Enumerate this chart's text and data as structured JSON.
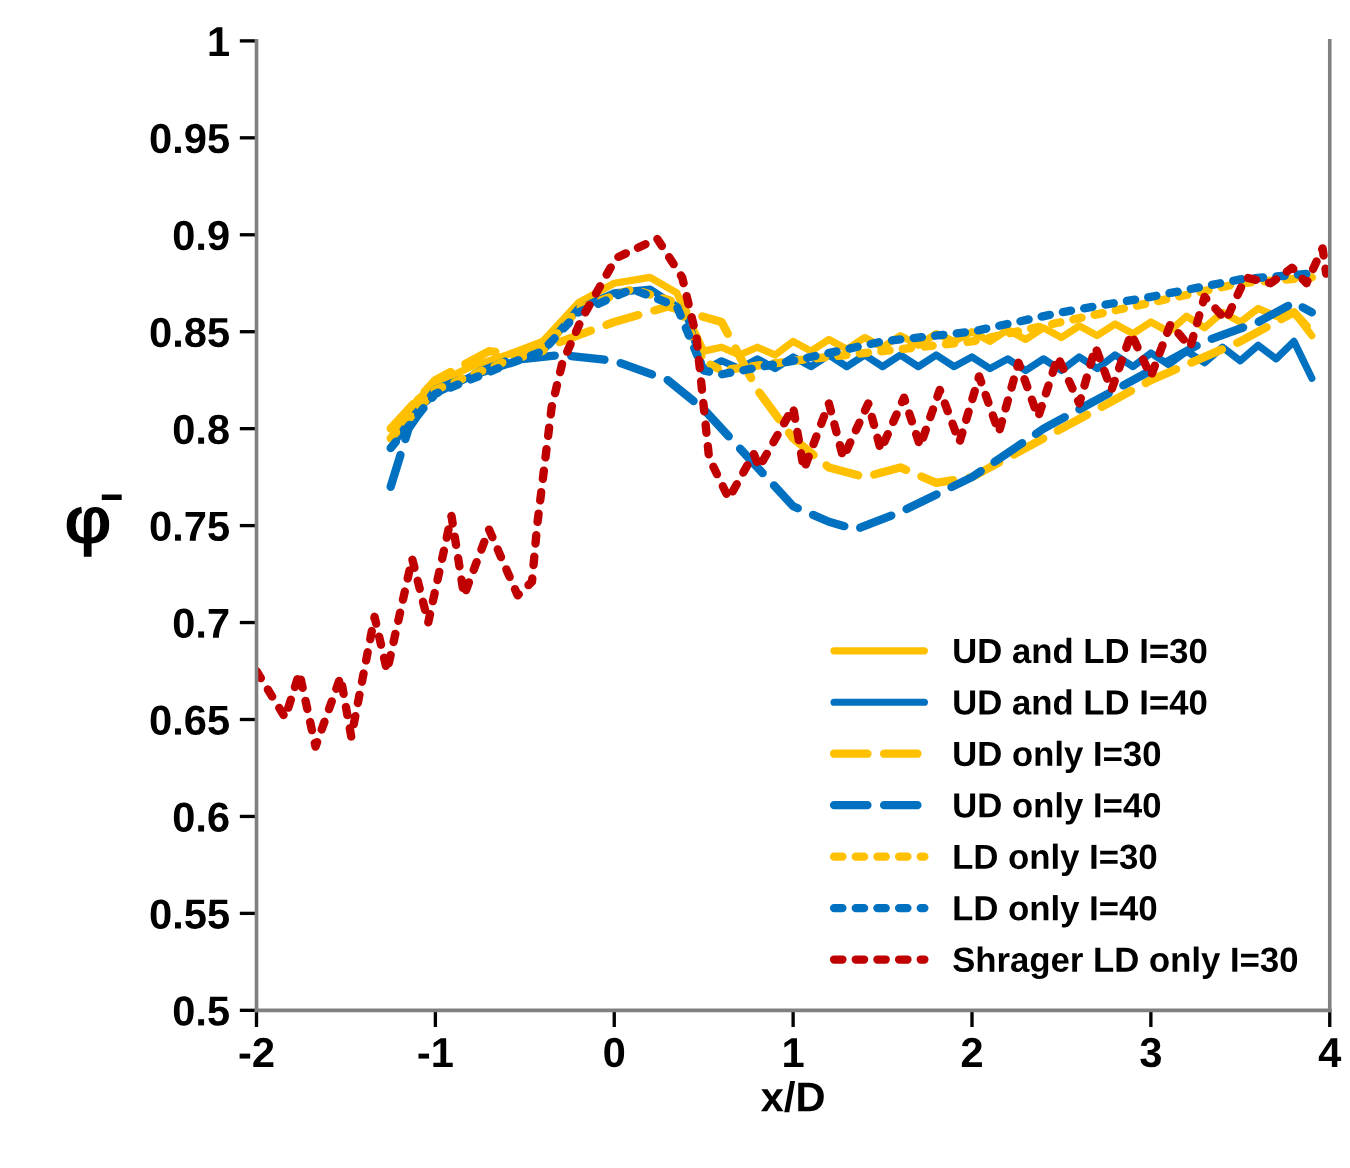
{
  "chart_data": {
    "type": "line",
    "xlabel": "x/D",
    "ylabel": "φ̄",
    "xlim": [
      -2,
      4
    ],
    "xticks": [
      -2,
      -1,
      0,
      1,
      2,
      3,
      4
    ],
    "ylim": [
      0.5,
      1
    ],
    "yticks": [
      0.5,
      0.55,
      0.6,
      0.65,
      0.7,
      0.75,
      0.8,
      0.85,
      0.9,
      0.95,
      1
    ],
    "grid": false,
    "legend": "bottom right",
    "series": [
      {
        "name": "UD and LD I=30",
        "color": "#ffc000",
        "line_style": "solid",
        "x": [
          -1.25,
          -1.1,
          -1.0,
          -0.8,
          -0.6,
          -0.4,
          -0.2,
          0.0,
          0.2,
          0.35,
          0.45,
          0.5,
          0.6,
          0.7,
          0.8,
          0.9,
          1.0,
          1.1,
          1.2,
          1.3,
          1.4,
          1.5,
          1.6,
          1.7,
          1.8,
          1.9,
          2.0,
          2.1,
          2.2,
          2.3,
          2.4,
          2.5,
          2.6,
          2.7,
          2.8,
          2.9,
          3.0,
          3.1,
          3.2,
          3.3,
          3.4,
          3.5,
          3.6,
          3.7,
          3.8,
          3.9
        ],
        "values": [
          0.795,
          0.815,
          0.823,
          0.832,
          0.838,
          0.845,
          0.865,
          0.875,
          0.878,
          0.87,
          0.85,
          0.84,
          0.842,
          0.838,
          0.842,
          0.838,
          0.845,
          0.84,
          0.846,
          0.841,
          0.847,
          0.842,
          0.848,
          0.843,
          0.849,
          0.845,
          0.85,
          0.845,
          0.851,
          0.846,
          0.852,
          0.847,
          0.853,
          0.848,
          0.854,
          0.849,
          0.855,
          0.85,
          0.858,
          0.852,
          0.86,
          0.855,
          0.862,
          0.858,
          0.86,
          0.848
        ]
      },
      {
        "name": "UD and LD I=40",
        "color": "#0070c0",
        "line_style": "solid",
        "x": [
          -1.25,
          -1.1,
          -1.0,
          -0.8,
          -0.6,
          -0.4,
          -0.2,
          0.0,
          0.2,
          0.4,
          0.5,
          0.6,
          0.7,
          0.8,
          0.9,
          1.0,
          1.1,
          1.2,
          1.3,
          1.4,
          1.5,
          1.6,
          1.7,
          1.8,
          1.9,
          2.0,
          2.1,
          2.2,
          2.3,
          2.4,
          2.5,
          2.6,
          2.7,
          2.8,
          2.9,
          3.0,
          3.1,
          3.2,
          3.3,
          3.4,
          3.5,
          3.6,
          3.7,
          3.8,
          3.9
        ],
        "values": [
          0.79,
          0.81,
          0.818,
          0.827,
          0.833,
          0.84,
          0.862,
          0.87,
          0.872,
          0.86,
          0.83,
          0.835,
          0.831,
          0.836,
          0.831,
          0.837,
          0.832,
          0.838,
          0.832,
          0.838,
          0.832,
          0.838,
          0.832,
          0.838,
          0.832,
          0.837,
          0.831,
          0.836,
          0.83,
          0.836,
          0.83,
          0.837,
          0.831,
          0.838,
          0.832,
          0.839,
          0.833,
          0.84,
          0.834,
          0.842,
          0.835,
          0.843,
          0.836,
          0.845,
          0.826
        ]
      },
      {
        "name": "UD only I=30",
        "color": "#ffc000",
        "line_style": "dashed",
        "x": [
          -1.25,
          -1.0,
          -0.7,
          -0.5,
          0.0,
          0.3,
          0.6,
          0.8,
          1.0,
          1.2,
          1.4,
          1.6,
          1.8,
          2.0,
          2.5,
          3.0,
          3.5,
          3.8,
          3.9
        ],
        "values": [
          0.8,
          0.825,
          0.84,
          0.838,
          0.855,
          0.863,
          0.855,
          0.82,
          0.795,
          0.78,
          0.775,
          0.78,
          0.772,
          0.775,
          0.8,
          0.825,
          0.845,
          0.86,
          0.85
        ]
      },
      {
        "name": "UD only I=40",
        "color": "#0070c0",
        "line_style": "dashed",
        "x": [
          -1.25,
          -1.15,
          -1.0,
          -0.6,
          -0.3,
          0.0,
          0.3,
          0.5,
          0.7,
          1.0,
          1.2,
          1.35,
          1.6,
          2.0,
          2.4,
          2.8,
          3.0,
          3.3,
          3.6,
          3.8,
          3.9
        ],
        "values": [
          0.77,
          0.8,
          0.82,
          0.835,
          0.838,
          0.835,
          0.825,
          0.81,
          0.79,
          0.76,
          0.752,
          0.748,
          0.757,
          0.775,
          0.8,
          0.82,
          0.83,
          0.845,
          0.855,
          0.865,
          0.86
        ]
      },
      {
        "name": "LD only I=30",
        "color": "#ffc000",
        "line_style": "dotted",
        "x": [
          -1.25,
          -1.0,
          -0.6,
          -0.4,
          -0.2,
          0.1,
          0.35,
          0.5,
          0.6,
          1.0,
          1.5,
          2.0,
          2.5,
          3.0,
          3.5,
          3.9
        ],
        "values": [
          0.795,
          0.82,
          0.835,
          0.84,
          0.862,
          0.872,
          0.865,
          0.835,
          0.83,
          0.835,
          0.84,
          0.845,
          0.855,
          0.865,
          0.875,
          0.878
        ]
      },
      {
        "name": "LD only I=40",
        "color": "#0070c0",
        "line_style": "dotted",
        "x": [
          -1.25,
          -1.0,
          -0.6,
          -0.4,
          -0.2,
          0.1,
          0.35,
          0.5,
          0.6,
          1.0,
          1.5,
          2.0,
          2.5,
          3.0,
          3.5,
          3.9
        ],
        "values": [
          0.79,
          0.818,
          0.833,
          0.84,
          0.86,
          0.872,
          0.863,
          0.83,
          0.828,
          0.835,
          0.845,
          0.85,
          0.86,
          0.868,
          0.877,
          0.88
        ]
      },
      {
        "name": "Shrager LD only I=30",
        "color": "#c00000",
        "line_style": "dotted",
        "x": [
          -2.0,
          -1.84,
          -1.76,
          -1.67,
          -1.53,
          -1.47,
          -1.34,
          -1.27,
          -1.13,
          -1.04,
          -0.91,
          -0.84,
          -0.7,
          -0.54,
          -0.46,
          -0.43,
          -0.35,
          -0.29,
          -0.18,
          0.01,
          0.24,
          0.38,
          0.46,
          0.53,
          0.64,
          0.78,
          0.81,
          1.0,
          1.06,
          1.2,
          1.28,
          1.42,
          1.49,
          1.62,
          1.71,
          1.82,
          1.93,
          2.04,
          2.15,
          2.26,
          2.37,
          2.48,
          2.6,
          2.69,
          2.78,
          2.89,
          3.0,
          3.11,
          3.22,
          3.3,
          3.42,
          3.53,
          3.67,
          3.79,
          3.87,
          3.96,
          3.98
        ],
        "values": [
          0.675,
          0.651,
          0.674,
          0.636,
          0.672,
          0.641,
          0.703,
          0.675,
          0.733,
          0.7,
          0.755,
          0.714,
          0.748,
          0.714,
          0.721,
          0.751,
          0.811,
          0.834,
          0.857,
          0.888,
          0.898,
          0.878,
          0.847,
          0.785,
          0.764,
          0.787,
          0.78,
          0.811,
          0.779,
          0.813,
          0.785,
          0.813,
          0.789,
          0.816,
          0.791,
          0.82,
          0.793,
          0.827,
          0.798,
          0.834,
          0.806,
          0.837,
          0.813,
          0.842,
          0.82,
          0.849,
          0.827,
          0.854,
          0.842,
          0.868,
          0.856,
          0.878,
          0.875,
          0.883,
          0.875,
          0.893,
          0.88
        ]
      }
    ]
  }
}
